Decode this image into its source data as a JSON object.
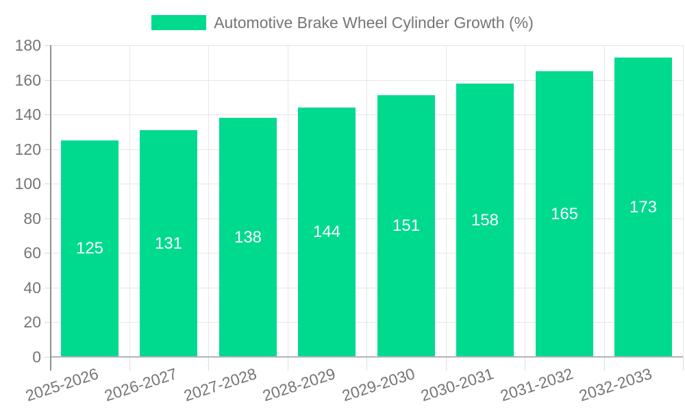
{
  "legend": {
    "position": "top"
  },
  "chart_data": {
    "type": "bar",
    "title": "Automotive Brake Wheel Cylinder Growth (%)",
    "categories": [
      "2025-2026",
      "2026-2027",
      "2027-2028",
      "2028-2029",
      "2029-2030",
      "2030-2031",
      "2031-2032",
      "2032-2033"
    ],
    "values": [
      125,
      131,
      138,
      144,
      151,
      158,
      165,
      173
    ],
    "xlabel": "",
    "ylabel": "",
    "ylim": [
      0,
      180
    ],
    "ytick_step": 20,
    "grid": true,
    "legend_position": "top",
    "bar_color": "#00da8e",
    "value_label_color": "#ffffff",
    "axis_text_color": "#757575"
  }
}
